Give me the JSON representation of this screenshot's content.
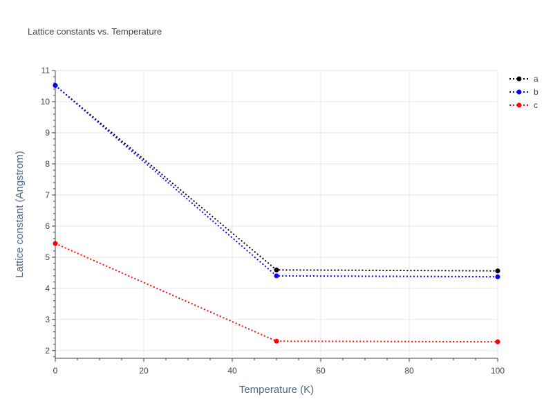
{
  "chart_data": {
    "type": "line",
    "title": "Lattice constants vs. Temperature",
    "xlabel": "Temperature (K)",
    "ylabel": "Lattice constant (Angstrom)",
    "xlim": [
      0,
      100
    ],
    "ylim": [
      1.75,
      11
    ],
    "x_ticks": [
      0,
      20,
      40,
      60,
      80,
      100
    ],
    "y_ticks": [
      2,
      3,
      4,
      5,
      6,
      7,
      8,
      9,
      10,
      11
    ],
    "grid": true,
    "legend_position": "top-right",
    "line_style": "dotted",
    "x": [
      0,
      50,
      100
    ],
    "series": [
      {
        "name": "a",
        "color": "#000000",
        "values": [
          10.52,
          4.59,
          4.56
        ]
      },
      {
        "name": "b",
        "color": "#0000ff",
        "values": [
          10.52,
          4.4,
          4.37
        ]
      },
      {
        "name": "c",
        "color": "#ff0000",
        "values": [
          5.44,
          2.3,
          2.28
        ]
      }
    ]
  }
}
